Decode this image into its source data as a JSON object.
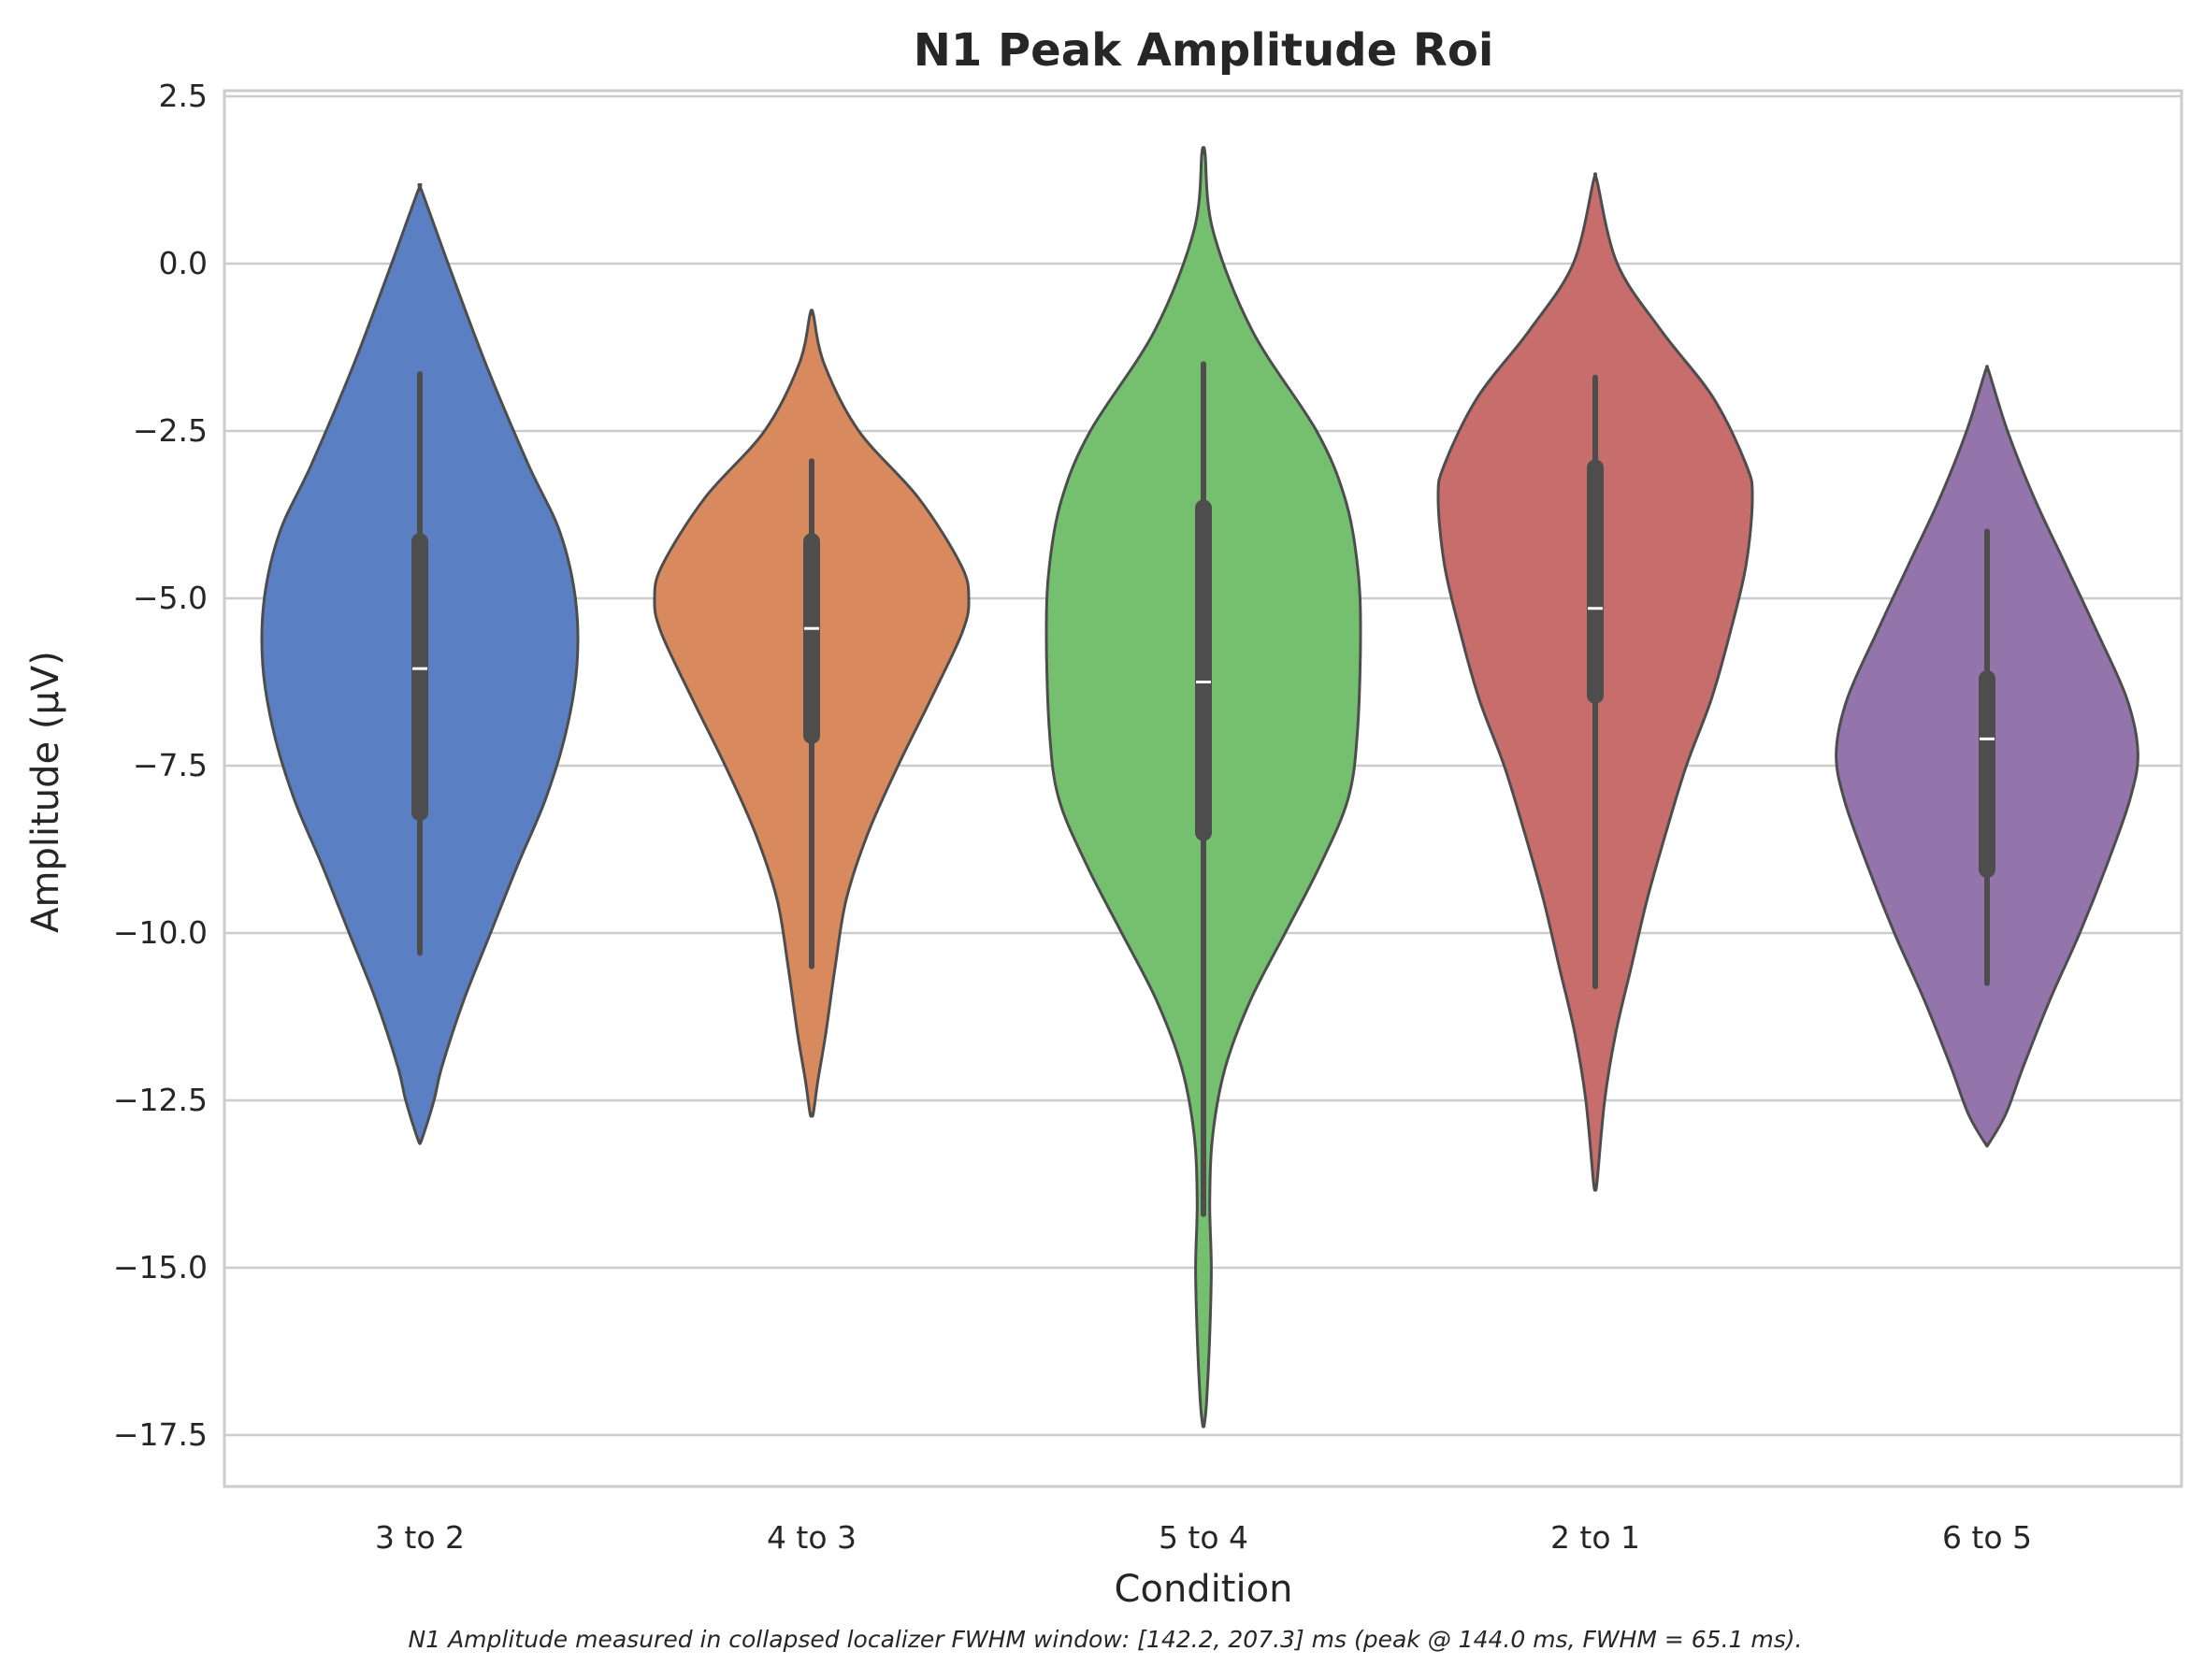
{
  "chart_data": {
    "type": "violin",
    "title": "N1 Peak Amplitude Roi",
    "xlabel": "Condition",
    "ylabel": "Amplitude (µV)",
    "caption": "N1 Amplitude measured in collapsed localizer FWHM window: [142.2, 207.3] ms (peak @ 144.0 ms, FWHM = 65.1 ms).",
    "ylim": [
      -18.3,
      2.6
    ],
    "yticks": [
      2.5,
      0.0,
      -2.5,
      -5.0,
      -7.5,
      -10.0,
      -12.5,
      -15.0,
      -17.5
    ],
    "ytick_labels": [
      "2.5",
      "0.0",
      "−2.5",
      "−5.0",
      "−7.5",
      "−10.0",
      "−12.5",
      "−15.0",
      "−17.5"
    ],
    "grid": "horizontal",
    "categories": [
      "3 to 2",
      "4 to 3",
      "5 to 4",
      "2 to 1",
      "6 to 5"
    ],
    "colors": [
      "#5a7fc2",
      "#d88a5e",
      "#74c06f",
      "#c76d6c",
      "#9375ab"
    ],
    "outline_color": "#4d4d4d",
    "violins": [
      {
        "category": "3 to 2",
        "kde_min": -13.1,
        "kde_max": 1.1,
        "whisker_low": -10.3,
        "whisker_high": -1.65,
        "q1": -8.2,
        "median": -6.05,
        "q3": -4.15,
        "density": [
          [
            1.1,
            0.01
          ],
          [
            0.0,
            0.18
          ],
          [
            -1.5,
            0.42
          ],
          [
            -3.0,
            0.69
          ],
          [
            -4.0,
            0.89
          ],
          [
            -5.0,
            0.99
          ],
          [
            -6.0,
            1.0
          ],
          [
            -7.0,
            0.93
          ],
          [
            -8.0,
            0.8
          ],
          [
            -9.0,
            0.62
          ],
          [
            -10.0,
            0.45
          ],
          [
            -11.0,
            0.28
          ],
          [
            -12.0,
            0.14
          ],
          [
            -12.5,
            0.09
          ],
          [
            -13.1,
            0.01
          ]
        ]
      },
      {
        "category": "4 to 3",
        "kde_min": -12.7,
        "kde_max": -0.75,
        "whisker_low": -10.5,
        "whisker_high": -2.95,
        "q1": -7.05,
        "median": -5.45,
        "q3": -4.15,
        "density": [
          [
            -0.75,
            0.01
          ],
          [
            -1.5,
            0.08
          ],
          [
            -2.5,
            0.3
          ],
          [
            -3.5,
            0.68
          ],
          [
            -4.5,
            0.95
          ],
          [
            -5.0,
            1.0
          ],
          [
            -5.5,
            0.96
          ],
          [
            -6.5,
            0.76
          ],
          [
            -7.5,
            0.55
          ],
          [
            -8.5,
            0.36
          ],
          [
            -9.5,
            0.22
          ],
          [
            -10.5,
            0.15
          ],
          [
            -11.5,
            0.09
          ],
          [
            -12.2,
            0.04
          ],
          [
            -12.7,
            0.01
          ]
        ]
      },
      {
        "category": "5 to 4",
        "kde_min": -17.35,
        "kde_max": 1.65,
        "whisker_low": -14.2,
        "whisker_high": -1.5,
        "q1": -8.5,
        "median": -6.25,
        "q3": -3.65,
        "density": [
          [
            1.65,
            0.01
          ],
          [
            0.5,
            0.06
          ],
          [
            -1.0,
            0.31
          ],
          [
            -2.5,
            0.72
          ],
          [
            -3.5,
            0.9
          ],
          [
            -4.5,
            0.98
          ],
          [
            -5.5,
            1.0
          ],
          [
            -7.0,
            0.98
          ],
          [
            -8.0,
            0.92
          ],
          [
            -9.0,
            0.74
          ],
          [
            -10.0,
            0.52
          ],
          [
            -11.0,
            0.3
          ],
          [
            -12.0,
            0.14
          ],
          [
            -13.0,
            0.06
          ],
          [
            -14.0,
            0.04
          ],
          [
            -15.0,
            0.05
          ],
          [
            -16.0,
            0.04
          ],
          [
            -17.0,
            0.02
          ],
          [
            -17.35,
            0.005
          ]
        ]
      },
      {
        "category": "2 to 1",
        "kde_min": -13.75,
        "kde_max": 1.25,
        "whisker_low": -10.8,
        "whisker_high": -1.7,
        "q1": -6.45,
        "median": -5.15,
        "q3": -3.05,
        "density": [
          [
            1.25,
            0.01
          ],
          [
            0.0,
            0.14
          ],
          [
            -1.0,
            0.42
          ],
          [
            -2.0,
            0.75
          ],
          [
            -3.0,
            0.96
          ],
          [
            -3.5,
            1.0
          ],
          [
            -4.5,
            0.96
          ],
          [
            -5.5,
            0.86
          ],
          [
            -6.5,
            0.74
          ],
          [
            -7.5,
            0.58
          ],
          [
            -8.5,
            0.45
          ],
          [
            -9.5,
            0.33
          ],
          [
            -10.5,
            0.23
          ],
          [
            -11.5,
            0.13
          ],
          [
            -12.5,
            0.06
          ],
          [
            -13.75,
            0.01
          ]
        ]
      },
      {
        "category": "6 to 5",
        "kde_min": -13.15,
        "kde_max": -1.6,
        "whisker_low": -10.75,
        "whisker_high": -4.0,
        "q1": -9.05,
        "median": -7.1,
        "q3": -6.2,
        "density": [
          [
            -1.6,
            0.01
          ],
          [
            -2.5,
            0.13
          ],
          [
            -3.5,
            0.3
          ],
          [
            -4.5,
            0.5
          ],
          [
            -5.5,
            0.7
          ],
          [
            -6.5,
            0.89
          ],
          [
            -7.3,
            0.96
          ],
          [
            -8.0,
            0.91
          ],
          [
            -9.0,
            0.76
          ],
          [
            -10.0,
            0.59
          ],
          [
            -11.0,
            0.4
          ],
          [
            -12.0,
            0.23
          ],
          [
            -12.7,
            0.12
          ],
          [
            -13.15,
            0.01
          ]
        ]
      }
    ]
  }
}
